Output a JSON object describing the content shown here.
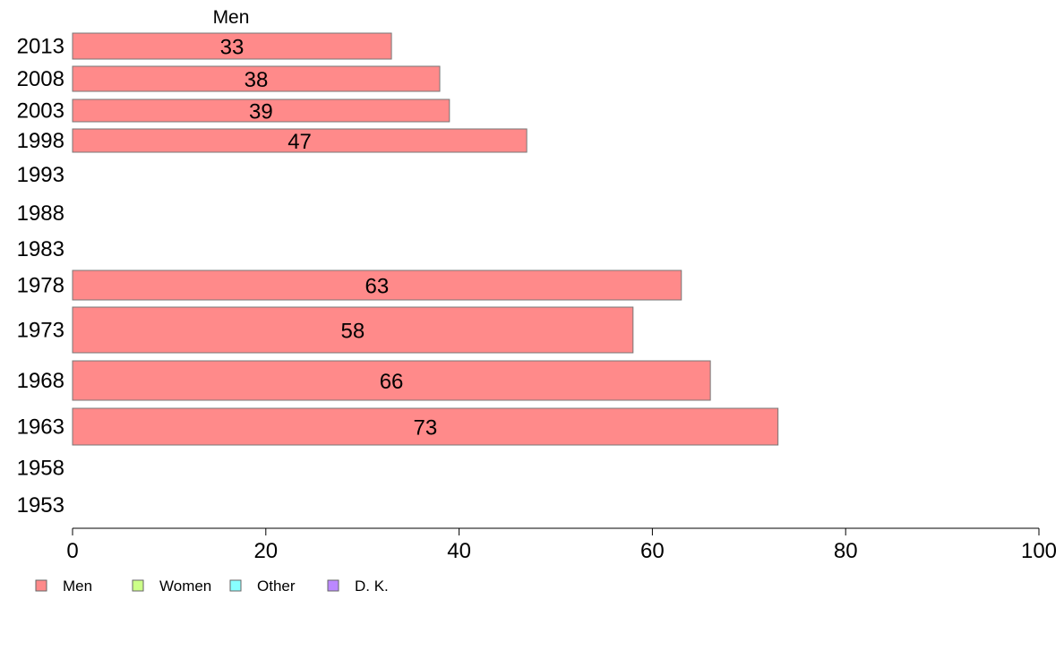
{
  "chart_data": {
    "type": "bar",
    "orientation": "horizontal",
    "column_header": "Men",
    "categories": [
      "2013",
      "2008",
      "2003",
      "1998",
      "1993",
      "1988",
      "1983",
      "1978",
      "1973",
      "1968",
      "1963",
      "1958",
      "1953"
    ],
    "series": [
      {
        "name": "Men",
        "color": "#ff8a8a",
        "values": [
          33,
          38,
          39,
          47,
          null,
          null,
          null,
          63,
          58,
          66,
          73,
          null,
          null
        ],
        "labels": [
          "33",
          "38",
          "39",
          "47",
          "",
          "",
          "",
          "63",
          "58",
          "66",
          "73",
          "",
          ""
        ]
      }
    ],
    "xlim": [
      0,
      100
    ],
    "xticks": [
      "0",
      "20",
      "40",
      "60",
      "80",
      "100"
    ],
    "grid": false,
    "legend_position": "bottom-left",
    "legend": [
      {
        "name": "Men",
        "color": "#ff8a8a"
      },
      {
        "name": "Women",
        "color": "#ccff88"
      },
      {
        "name": "Other",
        "color": "#88ffff"
      },
      {
        "name": "D. K.",
        "color": "#bb88ff"
      }
    ]
  }
}
